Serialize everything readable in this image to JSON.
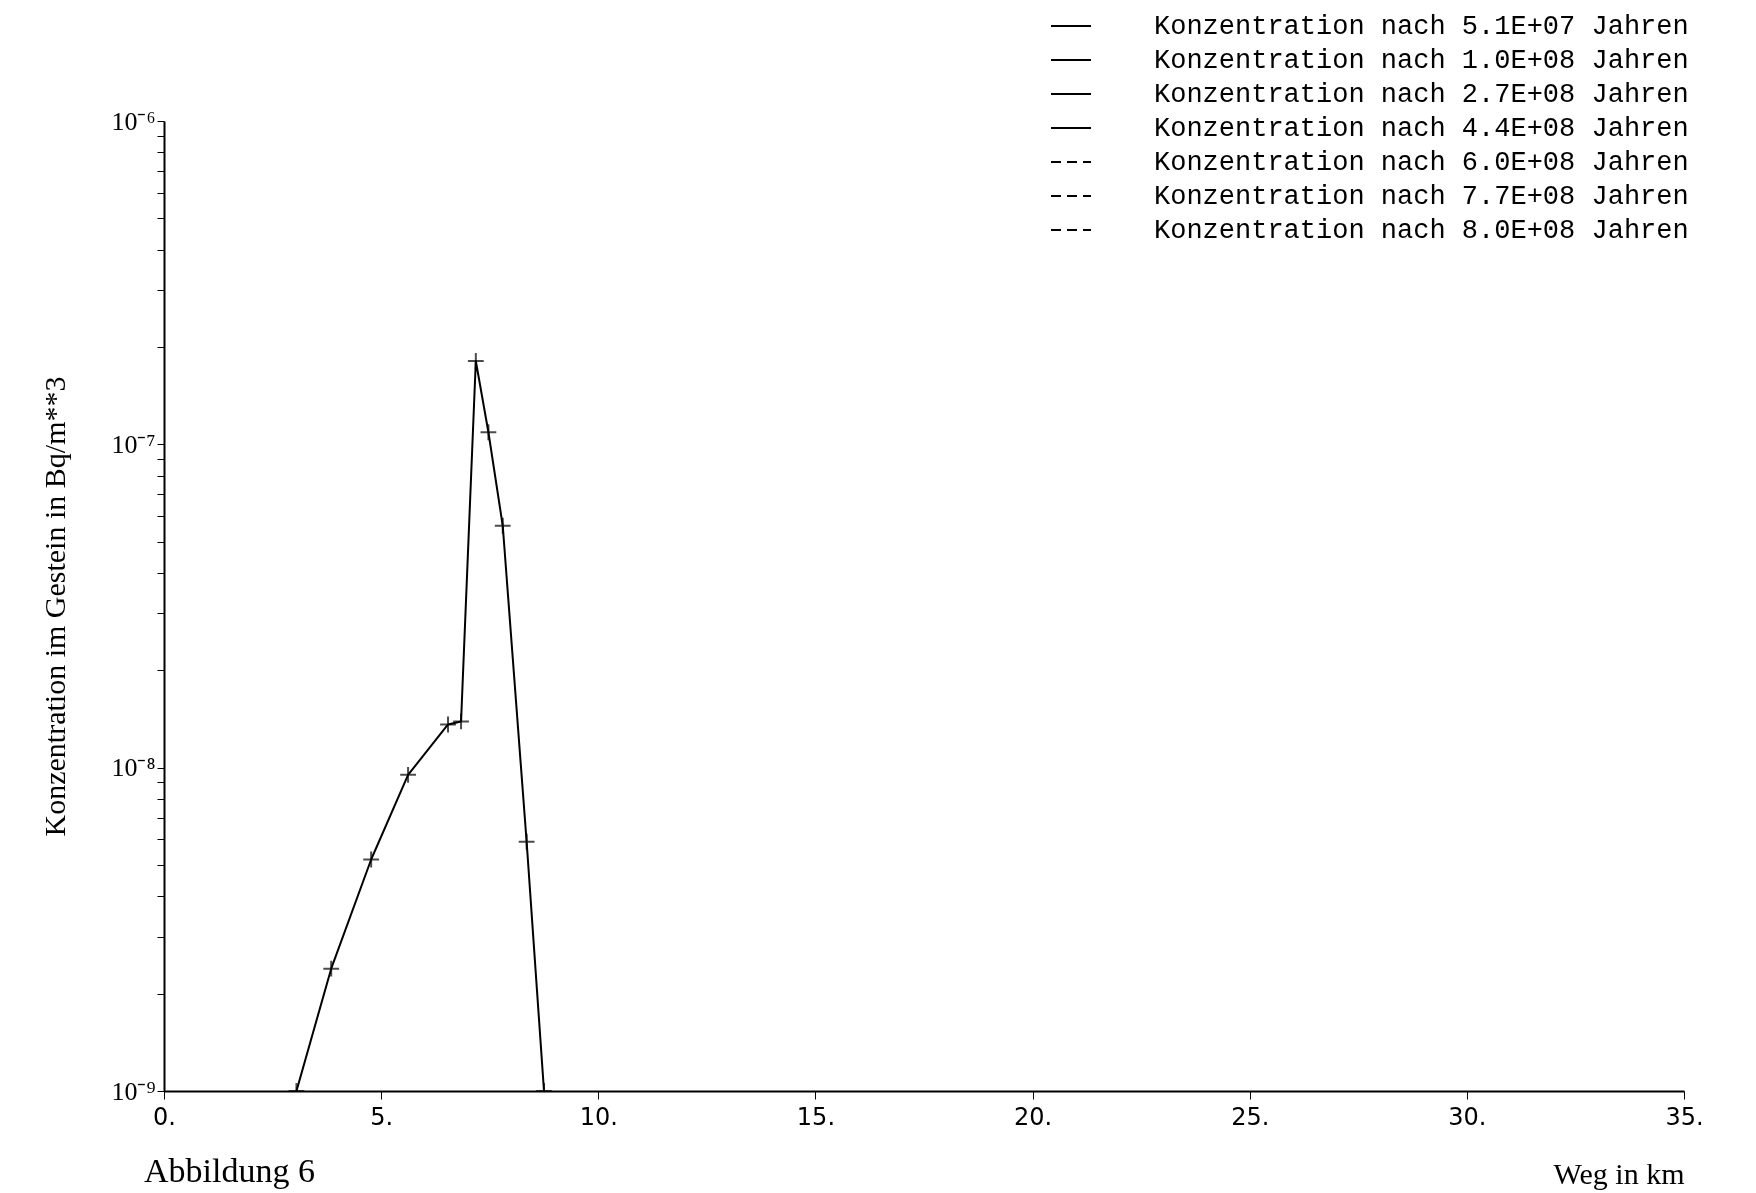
{
  "chart_data": {
    "type": "line",
    "xlabel": "Weg in km",
    "ylabel": "Konzentration im Gestein in Bq/m**3",
    "log": "y",
    "xlim": [
      0,
      35
    ],
    "ylim": [
      1e-09,
      1e-06
    ],
    "xticks": [
      {
        "value": 0,
        "label": "0."
      },
      {
        "value": 5,
        "label": "5."
      },
      {
        "value": 10,
        "label": "10."
      },
      {
        "value": 15,
        "label": "15."
      },
      {
        "value": 20,
        "label": "20."
      },
      {
        "value": 25,
        "label": "25."
      },
      {
        "value": 30,
        "label": "30."
      },
      {
        "value": 35,
        "label": "35."
      }
    ],
    "yticks": [
      {
        "value": 1e-09,
        "label": "10⁻⁹"
      },
      {
        "value": 2e-09,
        "label": null
      },
      {
        "value": 3e-09,
        "label": null
      },
      {
        "value": 4e-09,
        "label": null
      },
      {
        "value": 5e-09,
        "label": null
      },
      {
        "value": 6e-09,
        "label": null
      },
      {
        "value": 7e-09,
        "label": null
      },
      {
        "value": 8e-09,
        "label": null
      },
      {
        "value": 9e-09,
        "label": null
      },
      {
        "value": 1e-08,
        "label": "10⁻⁸"
      },
      {
        "value": 2e-08,
        "label": null
      },
      {
        "value": 3e-08,
        "label": null
      },
      {
        "value": 4e-08,
        "label": null
      },
      {
        "value": 5e-08,
        "label": null
      },
      {
        "value": 6e-08,
        "label": null
      },
      {
        "value": 7e-08,
        "label": null
      },
      {
        "value": 8e-08,
        "label": null
      },
      {
        "value": 9e-08,
        "label": null
      },
      {
        "value": 1e-07,
        "label": "10⁻⁷"
      },
      {
        "value": 2e-07,
        "label": null
      },
      {
        "value": 3e-07,
        "label": null
      },
      {
        "value": 4e-07,
        "label": null
      },
      {
        "value": 5e-07,
        "label": null
      },
      {
        "value": 6e-07,
        "label": null
      },
      {
        "value": 7e-07,
        "label": null
      },
      {
        "value": 8e-07,
        "label": null
      },
      {
        "value": 9e-07,
        "label": null
      },
      {
        "value": 1e-06,
        "label": "10⁻⁶"
      }
    ],
    "grid": false,
    "legend": "top right",
    "annotations": [
      "Abbildung 6"
    ],
    "series": [
      {
        "name": "Konzentration nach 5.1E+07 Jahren",
        "color": "#000000",
        "marker": "cross",
        "line_style": "solid",
        "x": [
          3.05,
          3.85,
          4.77,
          5.62,
          6.54,
          6.84,
          7.18,
          7.47,
          7.8,
          8.35,
          8.75
        ],
        "values": [
          1e-09,
          2.39e-09,
          5.2e-09,
          9.5e-09,
          1.36e-08,
          1.39e-08,
          1.81e-07,
          1.09e-07,
          5.6e-08,
          5.9e-09,
          1e-09
        ]
      },
      {
        "name": "Konzentration nach 1.0E+08 Jahren",
        "color": "#000000",
        "marker": "star",
        "line_style": "solid"
      },
      {
        "name": "Konzentration nach 2.7E+08 Jahren",
        "color": "#000000",
        "marker": "circle",
        "line_style": "solid"
      },
      {
        "name": "Konzentration nach 4.4E+08 Jahren",
        "color": "#000000",
        "marker": "cross",
        "line_style": "solid"
      },
      {
        "name": "Konzentration nach 6.0E+08 Jahren",
        "color": "#000000",
        "marker": "cross",
        "line_style": "dashed"
      },
      {
        "name": "Konzentration nach 7.7E+08 Jahren",
        "color": "#000000",
        "marker": "star",
        "line_style": "dashed"
      },
      {
        "name": "Konzentration nach 8.0E+08 Jahren",
        "color": "#000000",
        "marker": "circle",
        "line_style": "dashed"
      }
    ]
  }
}
